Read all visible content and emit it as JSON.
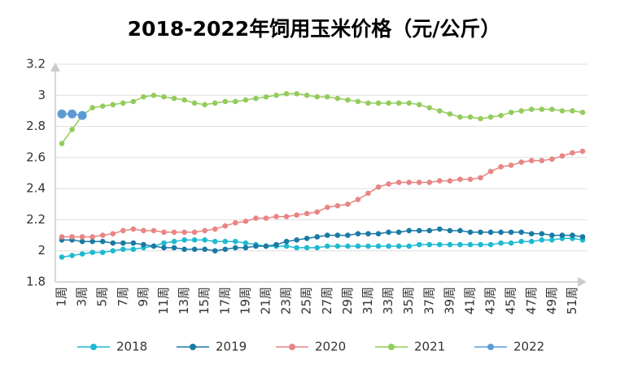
{
  "chart_data": {
    "type": "line",
    "title": "2018-2022年饲用玉米价格（元/公斤）",
    "categories": [
      "1周",
      null,
      "3周",
      null,
      "5周",
      null,
      "7周",
      null,
      "9周",
      null,
      "11周",
      null,
      "13周",
      null,
      "15周",
      null,
      "17周",
      null,
      "19周",
      null,
      "21周",
      null,
      "23周",
      null,
      "25周",
      null,
      "27周",
      null,
      "29周",
      null,
      "31周",
      null,
      "33周",
      null,
      "35周",
      null,
      "37周",
      null,
      "39周",
      null,
      "41周",
      null,
      "43周",
      null,
      "45周",
      null,
      "47周",
      null,
      "49周",
      null,
      "51周",
      null
    ],
    "ylim": [
      1.8,
      3.2
    ],
    "yticks": [
      1.8,
      2,
      2.2,
      2.4,
      2.6,
      2.8,
      3,
      3.2
    ],
    "grid": true,
    "legend": "bottom",
    "series": [
      {
        "name": "2018",
        "color": "#1fbad1",
        "values": [
          1.96,
          1.97,
          1.98,
          1.99,
          1.99,
          2.0,
          2.01,
          2.01,
          2.02,
          2.03,
          2.05,
          2.06,
          2.07,
          2.07,
          2.07,
          2.06,
          2.06,
          2.06,
          2.05,
          2.04,
          2.03,
          2.03,
          2.03,
          2.02,
          2.02,
          2.02,
          2.03,
          2.03,
          2.03,
          2.03,
          2.03,
          2.03,
          2.03,
          2.03,
          2.03,
          2.04,
          2.04,
          2.04,
          2.04,
          2.04,
          2.04,
          2.04,
          2.04,
          2.05,
          2.05,
          2.06,
          2.06,
          2.07,
          2.07,
          2.08,
          2.08,
          2.07
        ]
      },
      {
        "name": "2019",
        "color": "#1a7aa3",
        "values": [
          2.07,
          2.07,
          2.06,
          2.06,
          2.06,
          2.05,
          2.05,
          2.05,
          2.04,
          2.03,
          2.02,
          2.02,
          2.01,
          2.01,
          2.01,
          2.0,
          2.01,
          2.02,
          2.02,
          2.03,
          2.03,
          2.04,
          2.06,
          2.07,
          2.08,
          2.09,
          2.1,
          2.1,
          2.1,
          2.11,
          2.11,
          2.11,
          2.12,
          2.12,
          2.13,
          2.13,
          2.13,
          2.14,
          2.13,
          2.13,
          2.12,
          2.12,
          2.12,
          2.12,
          2.12,
          2.12,
          2.11,
          2.11,
          2.1,
          2.1,
          2.1,
          2.09
        ]
      },
      {
        "name": "2020",
        "color": "#e88585",
        "values": [
          2.09,
          2.09,
          2.09,
          2.09,
          2.1,
          2.11,
          2.13,
          2.14,
          2.13,
          2.13,
          2.12,
          2.12,
          2.12,
          2.12,
          2.13,
          2.14,
          2.16,
          2.18,
          2.19,
          2.21,
          2.21,
          2.22,
          2.22,
          2.23,
          2.24,
          2.25,
          2.28,
          2.29,
          2.3,
          2.33,
          2.37,
          2.41,
          2.43,
          2.44,
          2.44,
          2.44,
          2.44,
          2.45,
          2.45,
          2.46,
          2.46,
          2.47,
          2.51,
          2.54,
          2.55,
          2.57,
          2.58,
          2.58,
          2.59,
          2.61,
          2.63,
          2.64
        ]
      },
      {
        "name": "2021",
        "color": "#93cc5c",
        "values": [
          2.69,
          2.78,
          2.87,
          2.92,
          2.93,
          2.94,
          2.95,
          2.96,
          2.99,
          3.0,
          2.99,
          2.98,
          2.97,
          2.95,
          2.94,
          2.95,
          2.96,
          2.96,
          2.97,
          2.98,
          2.99,
          3.0,
          3.01,
          3.01,
          3.0,
          2.99,
          2.99,
          2.98,
          2.97,
          2.96,
          2.95,
          2.95,
          2.95,
          2.95,
          2.95,
          2.94,
          2.92,
          2.9,
          2.88,
          2.86,
          2.86,
          2.85,
          2.86,
          2.87,
          2.89,
          2.9,
          2.91,
          2.91,
          2.91,
          2.9,
          2.9,
          2.89
        ]
      },
      {
        "name": "2022",
        "color": "#5b9bd5",
        "values": [
          2.88,
          2.88,
          2.87,
          null,
          null,
          null,
          null,
          null,
          null,
          null,
          null,
          null,
          null,
          null,
          null,
          null,
          null,
          null,
          null,
          null,
          null,
          null,
          null,
          null,
          null,
          null,
          null,
          null,
          null,
          null,
          null,
          null,
          null,
          null,
          null,
          null,
          null,
          null,
          null,
          null,
          null,
          null,
          null,
          null,
          null,
          null,
          null,
          null,
          null,
          null,
          null,
          null
        ]
      }
    ]
  }
}
